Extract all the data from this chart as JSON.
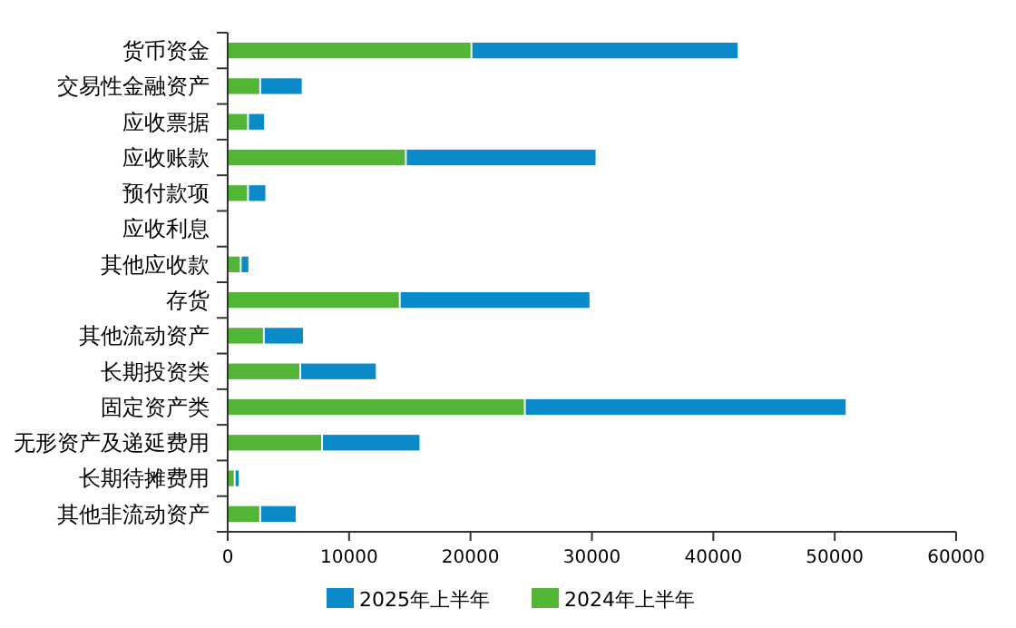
{
  "chart_data": {
    "type": "bar",
    "orientation": "horizontal",
    "stacked": true,
    "categories": [
      "货币资金",
      "交易性金融资产",
      "应收票据",
      "应收账款",
      "预付款项",
      "应收利息",
      "其他应收款",
      "存货",
      "其他流动资产",
      "长期投资类",
      "固定资产类",
      "无形资产及递延费用",
      "长期待摊费用",
      "其他非流动资产"
    ],
    "series": [
      {
        "name": "2024年上半年",
        "color": "#52b535",
        "values": [
          20000,
          2600,
          1600,
          14600,
          1600,
          0,
          1000,
          14100,
          2900,
          5900,
          24400,
          7700,
          500,
          2600
        ]
      },
      {
        "name": "2025年上半年",
        "color": "#0a8ac8",
        "values": [
          22000,
          3500,
          1400,
          15700,
          1500,
          0,
          700,
          15700,
          3300,
          6300,
          26500,
          8100,
          400,
          3000
        ]
      }
    ],
    "xlim": [
      0,
      60000
    ],
    "xticks": [
      0,
      10000,
      20000,
      30000,
      40000,
      50000,
      60000
    ],
    "legend": "bottom",
    "grid": false
  }
}
